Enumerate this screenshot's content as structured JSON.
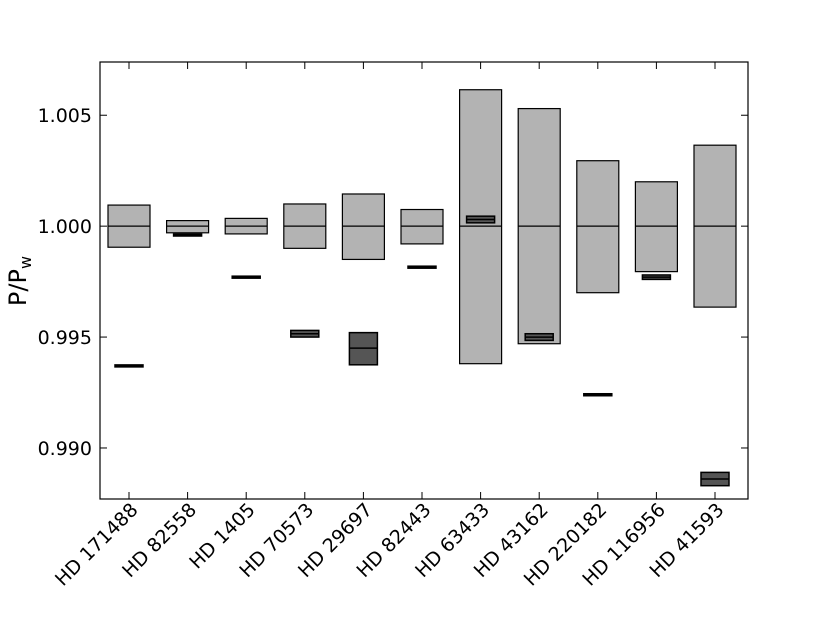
{
  "chart_data": {
    "type": "box",
    "ylabel": "P/P",
    "ylabel_sub": "w",
    "ylim": [
      0.9877,
      1.0074
    ],
    "yticks": [
      {
        "value": 1.005,
        "label": "1.005"
      },
      {
        "value": 1.0,
        "label": "1.000"
      },
      {
        "value": 0.995,
        "label": "0.995"
      },
      {
        "value": 0.99,
        "label": "0.990"
      }
    ],
    "grid": false,
    "light_color": "#b3b3b3",
    "dark_color": "#555555",
    "categories": [
      "HD 171488",
      "HD 82558",
      "HD 1405",
      "HD 70573",
      "HD 29697",
      "HD 82443",
      "HD 63433",
      "HD 43162",
      "HD 220182",
      "HD 116956",
      "HD 41593"
    ],
    "light_boxes": [
      {
        "low": 0.99905,
        "mid": 1.0,
        "high": 1.00095
      },
      {
        "low": 0.9997,
        "mid": 1.0,
        "high": 1.00025
      },
      {
        "low": 0.99965,
        "mid": 1.0,
        "high": 1.00035
      },
      {
        "low": 0.999,
        "mid": 1.0,
        "high": 1.001
      },
      {
        "low": 0.9985,
        "mid": 1.0,
        "high": 1.00145
      },
      {
        "low": 0.9992,
        "mid": 1.0,
        "high": 1.00075
      },
      {
        "low": 0.9938,
        "mid": 1.0,
        "high": 1.00615
      },
      {
        "low": 0.9947,
        "mid": 1.0,
        "high": 1.0053
      },
      {
        "low": 0.997,
        "mid": 1.0,
        "high": 1.00295
      },
      {
        "low": 0.99795,
        "mid": 1.0,
        "high": 1.002
      },
      {
        "low": 0.99635,
        "mid": 1.0,
        "high": 1.00365
      }
    ],
    "dark_boxes": [
      {
        "low": 0.9937,
        "mid": 0.9937,
        "high": 0.9937
      },
      {
        "low": 0.9996,
        "mid": 0.9996,
        "high": 0.9996
      },
      {
        "low": 0.9977,
        "mid": 0.9977,
        "high": 0.9977
      },
      {
        "low": 0.995,
        "mid": 0.99515,
        "high": 0.9953
      },
      {
        "low": 0.99375,
        "mid": 0.9945,
        "high": 0.9952
      },
      {
        "low": 0.99815,
        "mid": 0.99815,
        "high": 0.99815
      },
      {
        "low": 1.00015,
        "mid": 1.0003,
        "high": 1.00045
      },
      {
        "low": 0.99485,
        "mid": 0.995,
        "high": 0.99515
      },
      {
        "low": 0.9924,
        "mid": 0.9924,
        "high": 0.9924
      },
      {
        "low": 0.9976,
        "mid": 0.9977,
        "high": 0.9978
      },
      {
        "low": 0.9883,
        "mid": 0.9886,
        "high": 0.9889
      }
    ]
  }
}
